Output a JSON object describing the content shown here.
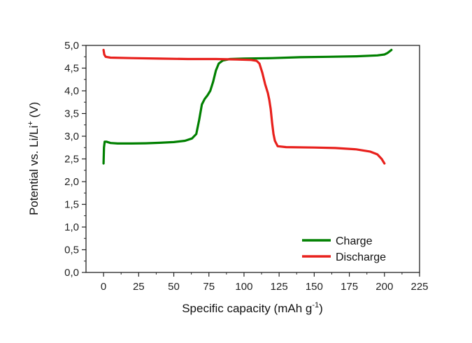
{
  "chart_data": {
    "type": "line",
    "xlabel": "Specific capacity (mAh g",
    "xlabel_sup": "-1",
    "xlabel_end": ")",
    "ylabel": "Potential vs. Li/Li",
    "ylabel_sup": "+",
    "ylabel_end": " (V)",
    "xlim": [
      -12.5,
      225
    ],
    "ylim": [
      0,
      5
    ],
    "xticks": [
      0,
      25,
      50,
      75,
      100,
      125,
      150,
      175,
      200,
      225
    ],
    "xtick_labels": [
      "0",
      "25",
      "50",
      "75",
      "100",
      "125",
      "150",
      "175",
      "200",
      "225"
    ],
    "yticks": [
      0,
      0.5,
      1,
      1.5,
      2,
      2.5,
      3,
      3.5,
      4,
      4.5,
      5
    ],
    "ytick_labels": [
      "0,0",
      "0,5",
      "1,0",
      "1,5",
      "2,0",
      "2,5",
      "3,0",
      "3,5",
      "4,0",
      "4,5",
      "5,0"
    ],
    "grid": false,
    "legend_position": "bottom-right",
    "series": [
      {
        "name": "Charge",
        "color": "#008000",
        "points": [
          [
            0,
            2.4
          ],
          [
            0.3,
            2.75
          ],
          [
            0.8,
            2.88
          ],
          [
            2,
            2.88
          ],
          [
            5,
            2.85
          ],
          [
            10,
            2.84
          ],
          [
            20,
            2.84
          ],
          [
            30,
            2.845
          ],
          [
            40,
            2.855
          ],
          [
            50,
            2.87
          ],
          [
            58,
            2.9
          ],
          [
            63,
            2.95
          ],
          [
            66,
            3.05
          ],
          [
            68,
            3.35
          ],
          [
            70,
            3.7
          ],
          [
            72,
            3.82
          ],
          [
            74,
            3.9
          ],
          [
            76,
            4.0
          ],
          [
            78,
            4.2
          ],
          [
            80,
            4.45
          ],
          [
            82,
            4.6
          ],
          [
            85,
            4.67
          ],
          [
            90,
            4.7
          ],
          [
            100,
            4.71
          ],
          [
            120,
            4.72
          ],
          [
            140,
            4.74
          ],
          [
            160,
            4.75
          ],
          [
            180,
            4.76
          ],
          [
            195,
            4.78
          ],
          [
            200,
            4.8
          ],
          [
            202,
            4.83
          ],
          [
            205,
            4.9
          ]
        ]
      },
      {
        "name": "Discharge",
        "color": "#e8201c",
        "points": [
          [
            0,
            4.9
          ],
          [
            0.5,
            4.8
          ],
          [
            1.5,
            4.75
          ],
          [
            5,
            4.73
          ],
          [
            20,
            4.72
          ],
          [
            40,
            4.71
          ],
          [
            60,
            4.7
          ],
          [
            80,
            4.7
          ],
          [
            95,
            4.69
          ],
          [
            105,
            4.68
          ],
          [
            109,
            4.66
          ],
          [
            111,
            4.6
          ],
          [
            113,
            4.4
          ],
          [
            115,
            4.15
          ],
          [
            117,
            3.95
          ],
          [
            118,
            3.8
          ],
          [
            119,
            3.6
          ],
          [
            120,
            3.3
          ],
          [
            121,
            3.05
          ],
          [
            122,
            2.9
          ],
          [
            124,
            2.78
          ],
          [
            130,
            2.76
          ],
          [
            150,
            2.75
          ],
          [
            165,
            2.74
          ],
          [
            180,
            2.71
          ],
          [
            190,
            2.66
          ],
          [
            195,
            2.6
          ],
          [
            198,
            2.5
          ],
          [
            200,
            2.4
          ]
        ]
      }
    ]
  }
}
